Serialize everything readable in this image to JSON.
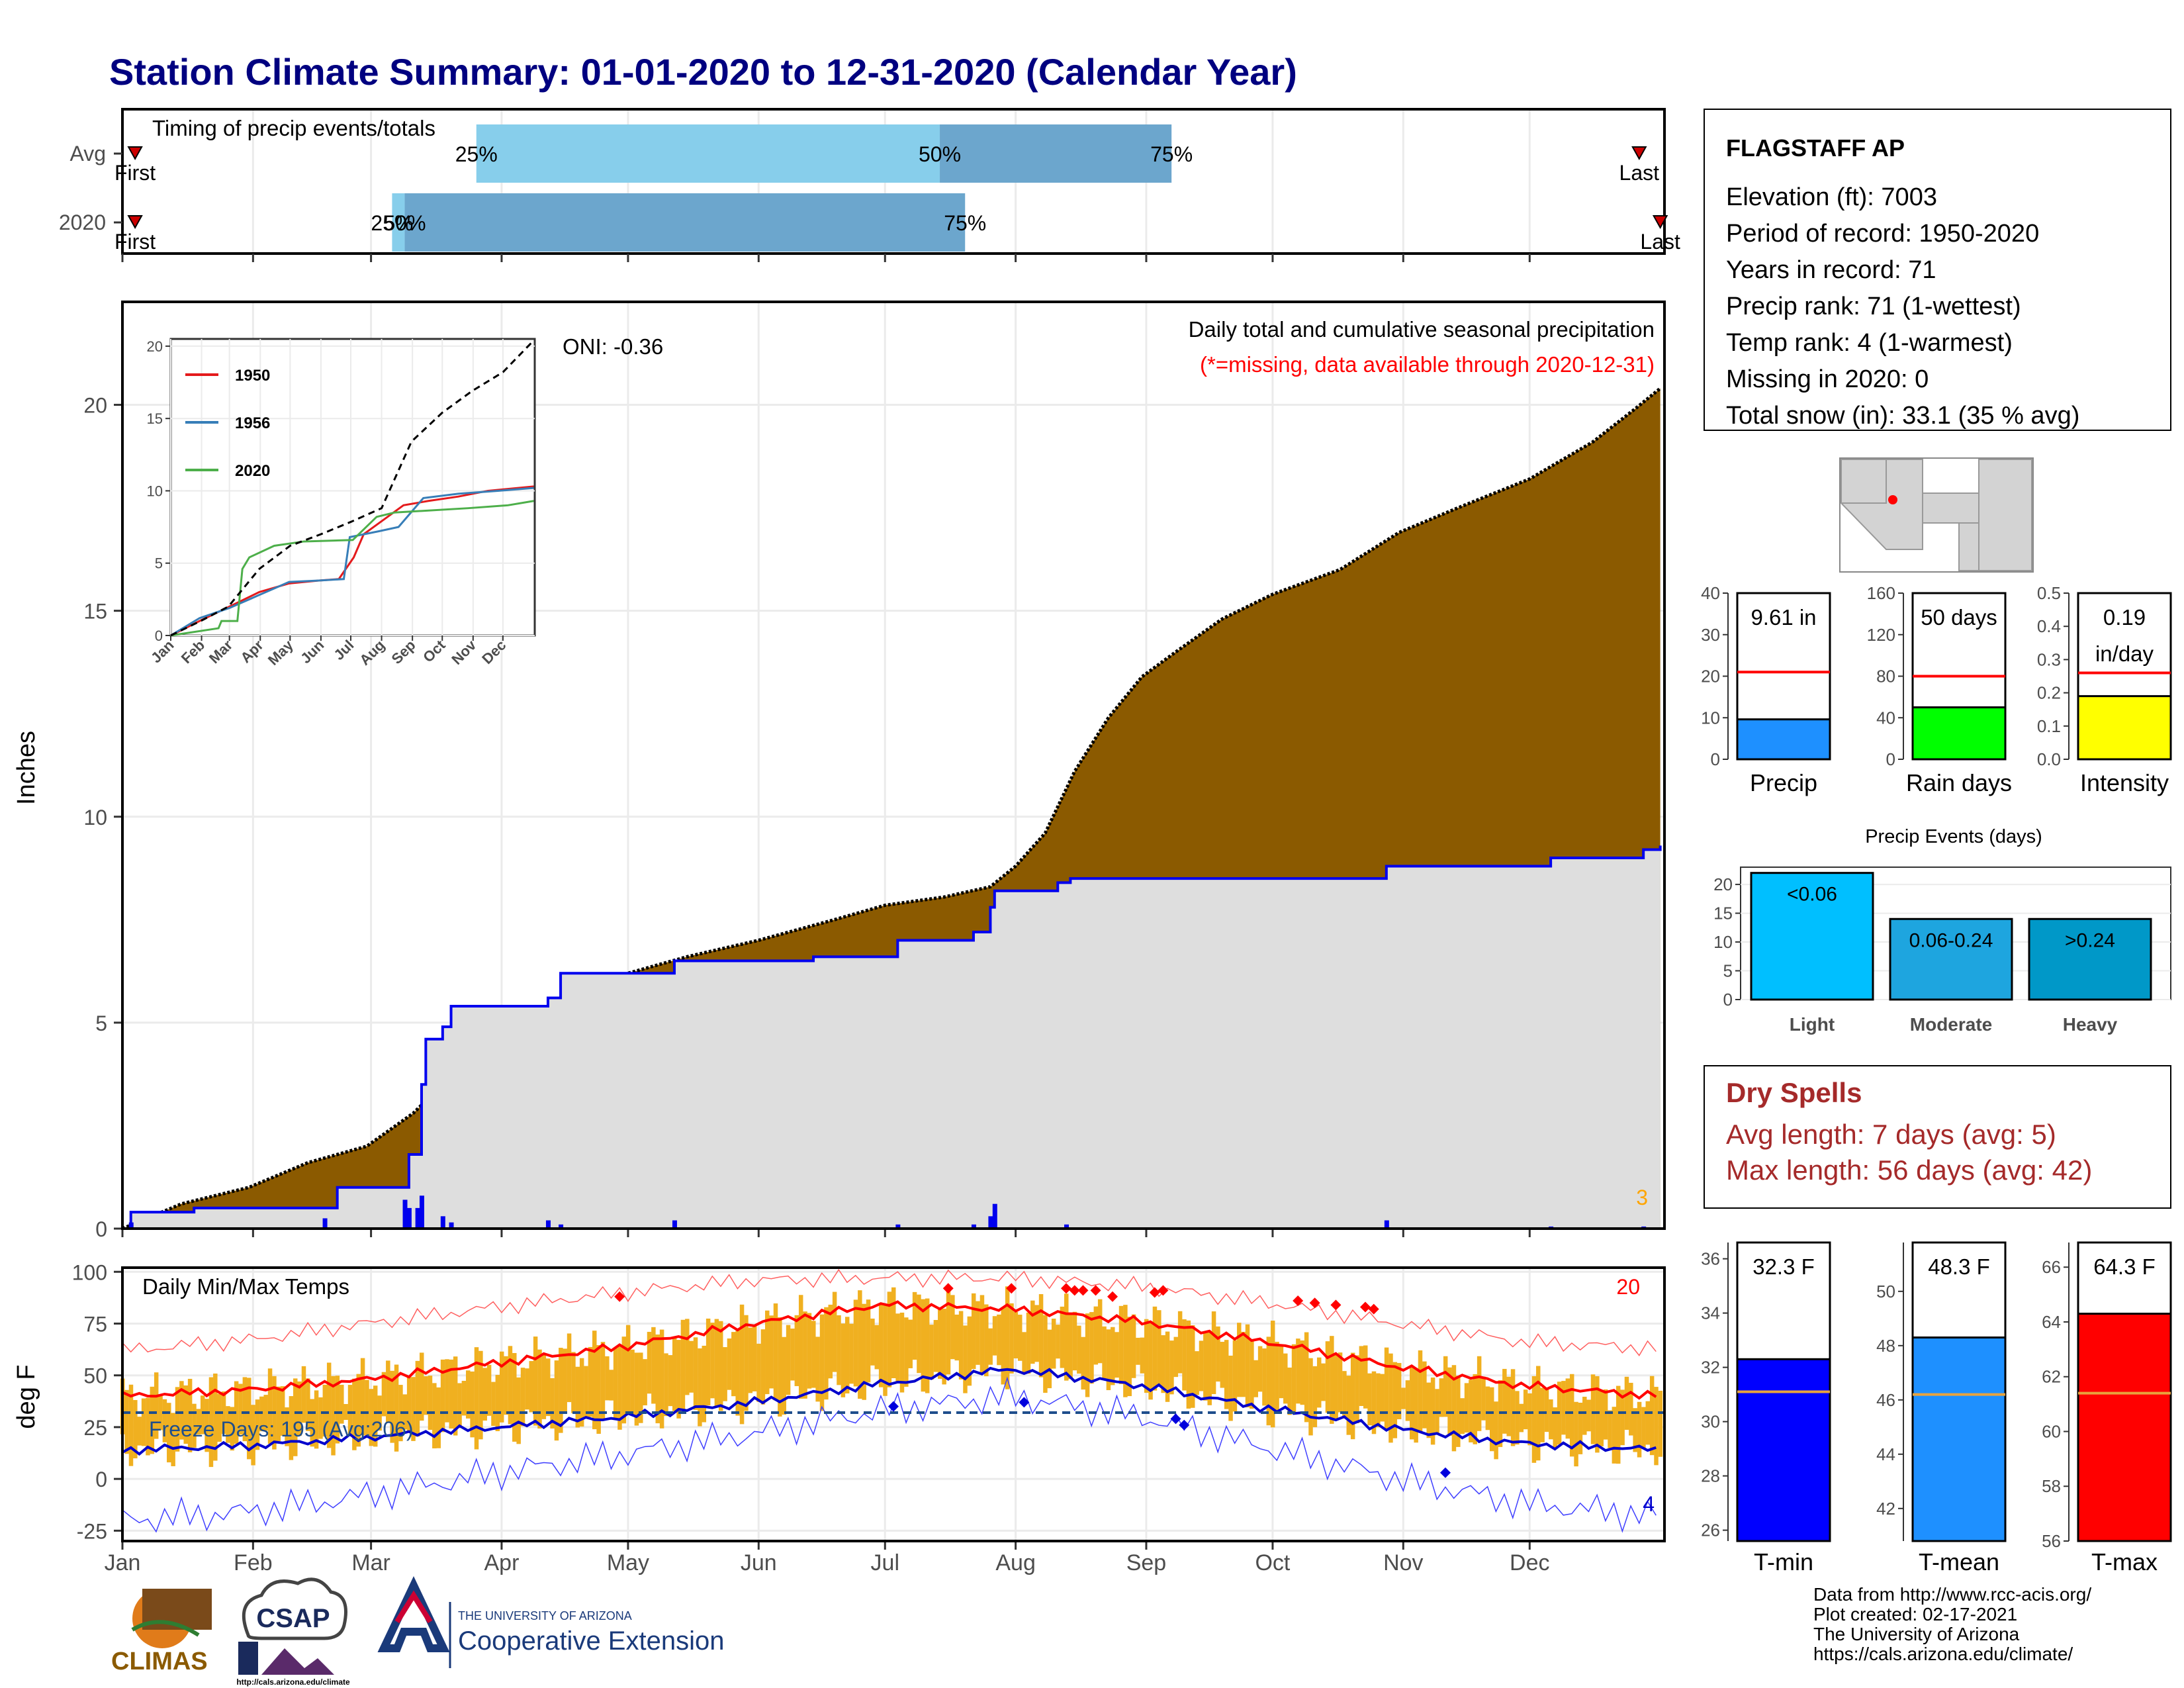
{
  "title": "Station Climate Summary: 01-01-2020 to 12-31-2020 (Calendar Year)",
  "timing": {
    "label": "Timing of precip events/totals",
    "rows": [
      {
        "name": "Avg",
        "first_label": "First",
        "last_label": "Last",
        "p25_label": "25%",
        "p50_label": "50%",
        "p75_label": "75%",
        "first_day": 4,
        "p25_day": 85,
        "p50_day": 195,
        "p75_day": 250,
        "last_day": 361
      },
      {
        "name": "2020",
        "first_label": "First",
        "last_label": "Last",
        "p25_label": "25%",
        "p50_label": "50%",
        "p75_label": "75%",
        "first_day": 4,
        "p25_day": 65,
        "p50_day": 68,
        "p75_day": 201,
        "last_day": 366
      }
    ],
    "colors": {
      "q1": "#87ceeb",
      "q2": "#87ceeb",
      "q3": "#6ca6cd",
      "marker": "#cc0000"
    }
  },
  "months": [
    "Jan",
    "Feb",
    "Mar",
    "Apr",
    "May",
    "Jun",
    "Jul",
    "Aug",
    "Sep",
    "Oct",
    "Nov",
    "Dec"
  ],
  "precip": {
    "ylabel": "Inches",
    "yticks": [
      0,
      5,
      10,
      15,
      20
    ],
    "ylim": [
      0,
      22.5
    ],
    "header": "Daily total and cumulative seasonal precipitation",
    "missing_note": "(*=missing, data available through 2020-12-31)",
    "oni": "ONI: -0.36",
    "corner_count": "3",
    "colors": {
      "avg_fill": "#8b5a00",
      "obs_fill": "#dedede",
      "obs_line": "#0000ee",
      "daily": "#0000ee"
    }
  },
  "chart_data": [
    {
      "type": "area",
      "name": "cumulative-precip",
      "x_unit": "day of year",
      "series": [
        {
          "name": "avg",
          "points": [
            [
              1,
              0
            ],
            [
              15,
              0.6
            ],
            [
              31,
              1.0
            ],
            [
              45,
              1.6
            ],
            [
              59,
              2.0
            ],
            [
              70,
              2.8
            ],
            [
              80,
              3.8
            ],
            [
              90,
              4.6
            ],
            [
              100,
              5.2
            ],
            [
              110,
              5.7
            ],
            [
              121,
              6.2
            ],
            [
              135,
              6.6
            ],
            [
              152,
              7.0
            ],
            [
              170,
              7.5
            ],
            [
              182,
              7.85
            ],
            [
              196,
              8.05
            ],
            [
              207,
              8.3
            ],
            [
              213,
              8.8
            ],
            [
              220,
              9.6
            ],
            [
              227,
              11.1
            ],
            [
              235,
              12.4
            ],
            [
              243,
              13.4
            ],
            [
              251,
              14.0
            ],
            [
              262,
              14.8
            ],
            [
              274,
              15.4
            ],
            [
              290,
              16.0
            ],
            [
              304,
              16.9
            ],
            [
              318,
              17.5
            ],
            [
              335,
              18.2
            ],
            [
              350,
              19.1
            ],
            [
              360,
              19.9
            ],
            [
              366,
              20.4
            ]
          ]
        },
        {
          "name": "2020",
          "points": [
            [
              1,
              0
            ],
            [
              3,
              0.4
            ],
            [
              18,
              0.5
            ],
            [
              49,
              0.5
            ],
            [
              52,
              1.0
            ],
            [
              68,
              1.0
            ],
            [
              69,
              1.8
            ],
            [
              72,
              3.5
            ],
            [
              73,
              4.6
            ],
            [
              77,
              4.9
            ],
            [
              79,
              5.4
            ],
            [
              102,
              5.6
            ],
            [
              105,
              6.2
            ],
            [
              132,
              6.5
            ],
            [
              165,
              6.6
            ],
            [
              184,
              6.6
            ],
            [
              185,
              7.0
            ],
            [
              201,
              7.0
            ],
            [
              203,
              7.2
            ],
            [
              207,
              7.8
            ],
            [
              208,
              8.2
            ],
            [
              223,
              8.4
            ],
            [
              226,
              8.5
            ],
            [
              299,
              8.5
            ],
            [
              301,
              8.8
            ],
            [
              340,
              9.0
            ],
            [
              361,
              9.0
            ],
            [
              362,
              9.2
            ],
            [
              366,
              9.3
            ]
          ]
        }
      ],
      "daily_bars": [
        [
          3,
          0.15
        ],
        [
          49,
          0.25
        ],
        [
          68,
          0.7
        ],
        [
          69,
          0.5
        ],
        [
          71,
          0.5
        ],
        [
          72,
          0.8
        ],
        [
          77,
          0.3
        ],
        [
          79,
          0.15
        ],
        [
          102,
          0.2
        ],
        [
          105,
          0.1
        ],
        [
          132,
          0.2
        ],
        [
          185,
          0.1
        ],
        [
          203,
          0.1
        ],
        [
          207,
          0.3
        ],
        [
          208,
          0.6
        ],
        [
          225,
          0.1
        ],
        [
          301,
          0.2
        ],
        [
          340,
          0.05
        ],
        [
          362,
          0.05
        ]
      ]
    },
    {
      "type": "line",
      "name": "inset-cumulative",
      "categories": [
        "Jan",
        "Feb",
        "Mar",
        "Apr",
        "May",
        "Jun",
        "Jul",
        "Aug",
        "Sep",
        "Oct",
        "Nov",
        "Dec"
      ],
      "yticks": [
        0,
        5,
        10,
        15,
        20
      ],
      "ylim": [
        0,
        20.5
      ],
      "series": [
        {
          "name": "1950",
          "color": "#e41a1c",
          "points": [
            [
              1,
              0
            ],
            [
              30,
              1.0
            ],
            [
              60,
              2.0
            ],
            [
              90,
              3.0
            ],
            [
              120,
              3.6
            ],
            [
              150,
              3.8
            ],
            [
              170,
              3.9
            ],
            [
              185,
              5.4
            ],
            [
              195,
              7.0
            ],
            [
              215,
              8.0
            ],
            [
              235,
              9.0
            ],
            [
              260,
              9.3
            ],
            [
              290,
              9.6
            ],
            [
              320,
              10.0
            ],
            [
              366,
              10.3
            ]
          ]
        },
        {
          "name": "1956",
          "color": "#377eb8",
          "points": [
            [
              1,
              0
            ],
            [
              30,
              1.2
            ],
            [
              60,
              1.9
            ],
            [
              90,
              2.8
            ],
            [
              120,
              3.7
            ],
            [
              150,
              3.8
            ],
            [
              175,
              3.9
            ],
            [
              181,
              6.8
            ],
            [
              210,
              7.2
            ],
            [
              230,
              7.5
            ],
            [
              255,
              9.5
            ],
            [
              290,
              9.8
            ],
            [
              330,
              10.0
            ],
            [
              366,
              10.2
            ]
          ]
        },
        {
          "name": "2020",
          "color": "#4daf4a",
          "points": [
            [
              1,
              0
            ],
            [
              49,
              0.5
            ],
            [
              52,
              1.0
            ],
            [
              68,
              1.0
            ],
            [
              73,
              4.6
            ],
            [
              80,
              5.4
            ],
            [
              105,
              6.2
            ],
            [
              135,
              6.5
            ],
            [
              184,
              6.6
            ],
            [
              208,
              8.2
            ],
            [
              226,
              8.5
            ],
            [
              300,
              8.8
            ],
            [
              340,
              9.0
            ],
            [
              366,
              9.3
            ]
          ]
        },
        {
          "name": "avg",
          "color": "#000000",
          "points": [
            [
              1,
              0
            ],
            [
              31,
              1.0
            ],
            [
              59,
              2.0
            ],
            [
              90,
              4.6
            ],
            [
              121,
              6.2
            ],
            [
              152,
              7.0
            ],
            [
              182,
              7.85
            ],
            [
              213,
              8.8
            ],
            [
              243,
              13.4
            ],
            [
              274,
              15.4
            ],
            [
              304,
              16.9
            ],
            [
              335,
              18.2
            ],
            [
              366,
              20.4
            ]
          ]
        }
      ]
    },
    {
      "type": "bar",
      "name": "precip-stats",
      "categories": [
        "Precip",
        "Rain days",
        "Intensity"
      ],
      "values": [
        9.61,
        50,
        0.19
      ],
      "averages": [
        21,
        80,
        0.26
      ],
      "value_labels": [
        "9.61 in",
        "50 days",
        "0.19\nin/day"
      ],
      "axes": [
        {
          "yticks": [
            0,
            10,
            20,
            30,
            40
          ],
          "ylim": [
            0,
            40
          ]
        },
        {
          "yticks": [
            0,
            40,
            80,
            120,
            160
          ],
          "ylim": [
            0,
            160
          ]
        },
        {
          "yticks": [
            "0.0",
            "0.1",
            "0.2",
            "0.3",
            "0.4",
            "0.5"
          ],
          "ylim": [
            0,
            0.5
          ]
        }
      ],
      "colors": [
        "#1e90ff",
        "#00ff00",
        "#ffff00"
      ]
    },
    {
      "type": "bar",
      "name": "precip-events",
      "title": "Precip Events (days)",
      "categories": [
        "Light",
        "Moderate",
        "Heavy"
      ],
      "values": [
        22,
        14,
        14
      ],
      "value_labels": [
        "<0.06",
        "0.06-0.24",
        ">0.24"
      ],
      "yticks": [
        0,
        5,
        10,
        15,
        20
      ],
      "ylim": [
        0,
        23
      ],
      "colors": [
        "#00bfff",
        "#1ea5df",
        "#0098c8"
      ]
    },
    {
      "type": "line",
      "name": "daily-temps",
      "title": "Daily Min/Max Temps",
      "ylabel": "deg F",
      "yticks": [
        -25,
        0,
        25,
        50,
        75,
        100
      ],
      "ylim": [
        -30,
        102
      ],
      "freeze_label": "Freeze Days: 195 (Avg:206)",
      "record_high_count": "20",
      "record_low_count": "4",
      "freeze_line": 32,
      "normal_max": [
        [
          1,
          40
        ],
        [
          31,
          43
        ],
        [
          59,
          48
        ],
        [
          90,
          56
        ],
        [
          120,
          64
        ],
        [
          151,
          75
        ],
        [
          181,
          84
        ],
        [
          212,
          82
        ],
        [
          243,
          76
        ],
        [
          273,
          66
        ],
        [
          304,
          54
        ],
        [
          334,
          45
        ],
        [
          366,
          40
        ]
      ],
      "normal_min": [
        [
          1,
          14
        ],
        [
          31,
          16
        ],
        [
          59,
          20
        ],
        [
          90,
          25
        ],
        [
          120,
          30
        ],
        [
          151,
          37
        ],
        [
          181,
          46
        ],
        [
          212,
          53
        ],
        [
          243,
          45
        ],
        [
          273,
          34
        ],
        [
          304,
          24
        ],
        [
          334,
          17
        ],
        [
          366,
          14
        ]
      ],
      "record_max": [
        [
          1,
          62
        ],
        [
          31,
          67
        ],
        [
          59,
          75
        ],
        [
          90,
          83
        ],
        [
          120,
          90
        ],
        [
          151,
          96
        ],
        [
          181,
          97
        ],
        [
          212,
          97
        ],
        [
          243,
          93
        ],
        [
          273,
          85
        ],
        [
          304,
          75
        ],
        [
          334,
          66
        ],
        [
          366,
          63
        ]
      ],
      "record_min": [
        [
          1,
          -20
        ],
        [
          31,
          -16
        ],
        [
          59,
          -8
        ],
        [
          90,
          3
        ],
        [
          120,
          12
        ],
        [
          151,
          22
        ],
        [
          181,
          33
        ],
        [
          212,
          40
        ],
        [
          243,
          30
        ],
        [
          273,
          15
        ],
        [
          304,
          0
        ],
        [
          334,
          -12
        ],
        [
          366,
          -18
        ]
      ],
      "record_high_days": [
        [
          119,
          88
        ],
        [
          197,
          92
        ],
        [
          212,
          92
        ],
        [
          225,
          92
        ],
        [
          227,
          91
        ],
        [
          229,
          91
        ],
        [
          232,
          91
        ],
        [
          236,
          88
        ],
        [
          246,
          90
        ],
        [
          248,
          91
        ],
        [
          280,
          86
        ],
        [
          284,
          85
        ],
        [
          289,
          84
        ],
        [
          296,
          83
        ],
        [
          298,
          82
        ]
      ],
      "record_low_days": [
        [
          184,
          35
        ],
        [
          215,
          37
        ],
        [
          251,
          29
        ],
        [
          253,
          26
        ],
        [
          315,
          3
        ]
      ],
      "colors": {
        "band": "#f0b020",
        "max": "#ff0000",
        "min": "#0000cc",
        "record_max": "#ff6060",
        "record_min": "#4040ff",
        "freeze": "#1f4e8c"
      }
    },
    {
      "type": "bar",
      "name": "temp-stats",
      "categories": [
        "T-min",
        "T-mean",
        "T-max"
      ],
      "values": [
        32.3,
        48.3,
        64.3
      ],
      "averages": [
        31.1,
        46.2,
        61.4
      ],
      "value_labels": [
        "32.3 F",
        "48.3 F",
        "64.3 F"
      ],
      "axes": [
        {
          "yticks": [
            26,
            28,
            30,
            32,
            34,
            36
          ],
          "ylim": [
            25.6,
            36.6
          ]
        },
        {
          "yticks": [
            42,
            44,
            46,
            48,
            50
          ],
          "ylim": [
            40.8,
            51.8
          ]
        },
        {
          "yticks": [
            56,
            58,
            60,
            62,
            64,
            66
          ],
          "ylim": [
            56.0,
            66.9
          ]
        }
      ],
      "colors": [
        "#0000ff",
        "#1e90ff",
        "#ff0000"
      ]
    }
  ],
  "station": {
    "name": "FLAGSTAFF AP",
    "lines": [
      "Elevation (ft): 7003",
      "Period of record: 1950-2020",
      "Years in record: 71",
      "Precip rank: 71 (1-wettest)",
      "Temp rank: 4 (1-warmest)",
      "Missing in 2020: 0",
      "Total snow (in): 33.1 (35 % avg)"
    ]
  },
  "dry_spells": {
    "title": "Dry Spells",
    "avg": "Avg length: 7 days (avg: 5)",
    "max": "Max length: 56 days (avg: 42)",
    "color": "#a52a2a"
  },
  "footer": {
    "lines": [
      "Data from http://www.rcc-acis.org/",
      "Plot created: 02-17-2021",
      "The University of Arizona",
      "https://cals.arizona.edu/climate/"
    ],
    "logo_climas": "CLIMAS",
    "logo_csap": "CSAP",
    "logo_csap_url": "http://cals.arizona.edu/climate",
    "ua_top": "THE UNIVERSITY OF ARIZONA",
    "ua_bottom": "Cooperative Extension"
  }
}
